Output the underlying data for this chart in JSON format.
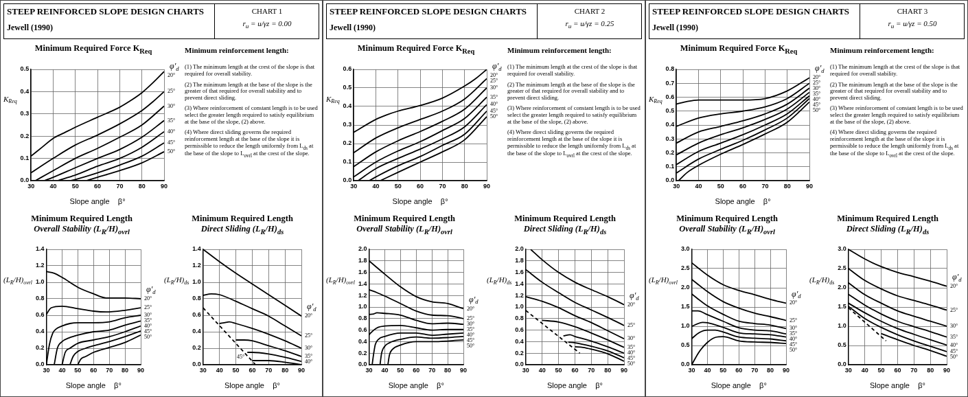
{
  "chart_data": [
    {
      "type": "other",
      "title": "STEEP REINFORCED SLOPE DESIGN CHARTS",
      "annotations": [
        "Jewell (1990)",
        "CHART 1",
        "r$_{u}$ = u/γz = 0.00",
        "Minimum reinforcement length:",
        "(1) The minimum length at the crest of the slope is that required for overall stability.",
        "(2) The minimum length at the base of the slope is the greater of that required for overall stability and to prevent direct sliding.",
        "(3) Where reinforcement of constant length is to be used select the greater length required to satisfy equilibrium at the base of the slope, (2) above.",
        "(4) Where direct sliding governs the required reinforcement length at the base of the slope it is permissible to reduce the length uniformly from L$_{ds}$ at the base of the slope to L$_{ovrl}$ at the crest of the slope."
      ]
    },
    {
      "type": "line",
      "title": "Minimum Required Force  K$_{Req}$",
      "xlabel": "Slope angle    β°",
      "ylabel": "K$_{Req}$",
      "legend_title": "φ′$_{d}$",
      "xlim": [
        30,
        90
      ],
      "ylim": [
        0,
        0.5
      ],
      "xticks": [
        30,
        40,
        50,
        60,
        70,
        80,
        90
      ],
      "yticks": [
        {
          "value": 0,
          "label": "0.0"
        },
        0.1,
        0.2,
        0.3,
        0.4,
        0.5
      ],
      "grid": true,
      "marker": "none",
      "series": [
        {
          "name": "20°",
          "color": "#000000",
          "x": [
            30,
            35,
            40,
            45,
            50,
            60,
            70,
            75,
            80,
            85,
            90
          ],
          "values": [
            0.11,
            0.15,
            0.19,
            0.215,
            0.24,
            0.285,
            0.33,
            0.36,
            0.395,
            0.44,
            0.49
          ]
        },
        {
          "name": "25°",
          "color": "#000000",
          "x": [
            30,
            40,
            50,
            60,
            70,
            80,
            85,
            90
          ],
          "values": [
            0.035,
            0.1,
            0.16,
            0.205,
            0.255,
            0.315,
            0.355,
            0.4
          ]
        },
        {
          "name": "30°",
          "color": "#000000",
          "x": [
            32,
            40,
            50,
            60,
            70,
            80,
            90
          ],
          "values": [
            0,
            0.045,
            0.1,
            0.145,
            0.195,
            0.25,
            0.335
          ]
        },
        {
          "name": "35°",
          "color": "#000000",
          "x": [
            36,
            40,
            50,
            60,
            70,
            80,
            90
          ],
          "values": [
            0,
            0.015,
            0.058,
            0.1,
            0.14,
            0.195,
            0.27
          ]
        },
        {
          "name": "40°",
          "color": "#000000",
          "x": [
            42,
            50,
            60,
            70,
            80,
            90
          ],
          "values": [
            0,
            0.025,
            0.065,
            0.1,
            0.15,
            0.22
          ]
        },
        {
          "name": "45°",
          "color": "#000000",
          "x": [
            48,
            50,
            60,
            70,
            80,
            90
          ],
          "values": [
            0,
            0.005,
            0.035,
            0.07,
            0.11,
            0.17
          ]
        },
        {
          "name": "50°",
          "color": "#000000",
          "x": [
            55,
            60,
            70,
            80,
            90
          ],
          "values": [
            0,
            0.015,
            0.045,
            0.08,
            0.13
          ]
        }
      ]
    },
    {
      "type": "line",
      "title": "Minimum Required Length",
      "subtitle": "Overall Stability   (L$_{R}$/H)$_{ovrl}$",
      "xlabel": "Slope angle    β°",
      "ylabel": "(L$_{R}$/H)$_{ovrl}$",
      "legend_title": "φ′$_{d}$",
      "xlim": [
        30,
        90
      ],
      "ylim": [
        0,
        1.4
      ],
      "xticks": [
        30,
        40,
        50,
        60,
        70,
        80,
        90
      ],
      "yticks": [
        {
          "value": 0,
          "label": "0.0"
        },
        0.2,
        0.4,
        0.6,
        0.8,
        {
          "value": 1,
          "label": "1.0"
        },
        1.2,
        1.4
      ],
      "grid": true,
      "marker": "none",
      "series": [
        {
          "name": "20°",
          "color": "#000000",
          "x": [
            30,
            35,
            40,
            50,
            60,
            68,
            80,
            90
          ],
          "values": [
            1.13,
            1.11,
            1.06,
            0.94,
            0.86,
            0.81,
            0.81,
            0.8
          ]
        },
        {
          "name": "25°",
          "color": "#000000",
          "x": [
            30,
            33,
            40,
            50,
            60,
            68,
            80,
            90
          ],
          "values": [
            0.61,
            0.69,
            0.71,
            0.68,
            0.65,
            0.64,
            0.66,
            0.69
          ]
        },
        {
          "name": "30°",
          "color": "#000000",
          "x": [
            30,
            32,
            34,
            36,
            40,
            45,
            50,
            60,
            70,
            80,
            90
          ],
          "values": [
            0,
            0.25,
            0.38,
            0.43,
            0.47,
            0.5,
            0.51,
            0.51,
            0.52,
            0.57,
            0.6
          ]
        },
        {
          "name": "35°",
          "color": "#000000",
          "x": [
            35,
            37,
            40,
            45,
            50,
            60,
            70,
            80,
            90
          ],
          "values": [
            0,
            0.2,
            0.28,
            0.33,
            0.36,
            0.4,
            0.42,
            0.48,
            0.53
          ]
        },
        {
          "name": "40°",
          "color": "#000000",
          "x": [
            40,
            42,
            45,
            50,
            60,
            70,
            80,
            90
          ],
          "values": [
            0,
            0.15,
            0.2,
            0.26,
            0.3,
            0.34,
            0.4,
            0.47
          ]
        },
        {
          "name": "45°",
          "color": "#000000",
          "x": [
            45,
            47,
            50,
            55,
            60,
            70,
            80,
            90
          ],
          "values": [
            0,
            0.1,
            0.16,
            0.2,
            0.23,
            0.28,
            0.34,
            0.41
          ]
        },
        {
          "name": "50°",
          "color": "#000000",
          "x": [
            50,
            52,
            55,
            60,
            70,
            80,
            90
          ],
          "values": [
            0,
            0.07,
            0.1,
            0.15,
            0.21,
            0.27,
            0.36
          ]
        }
      ]
    },
    {
      "type": "line",
      "title": "Minimum Required Length",
      "subtitle": "Direct Sliding   (L$_{R}$/H)$_{ds}$",
      "xlabel": "Slope angle    β°",
      "ylabel": "(L$_{R}$/H)$_{ds}$",
      "legend_title": "φ′$_{d}$",
      "xlim": [
        30,
        90
      ],
      "ylim": [
        0,
        1.4
      ],
      "xticks": [
        30,
        40,
        50,
        60,
        70,
        80,
        90
      ],
      "yticks": [
        {
          "value": 0,
          "label": "0.0"
        },
        0.2,
        0.4,
        0.6,
        0.8,
        {
          "value": 1,
          "label": "1.0"
        },
        1.2,
        1.4
      ],
      "grid": true,
      "marker": "none",
      "annotations": [
        {
          "text": "45°",
          "x": 57,
          "y": 0.05
        }
      ],
      "series": [
        {
          "name": "20°",
          "color": "#000000",
          "x": [
            30,
            40,
            50,
            60,
            70,
            80,
            90
          ],
          "values": [
            1.4,
            1.25,
            1.11,
            0.98,
            0.85,
            0.72,
            0.59
          ]
        },
        {
          "name": "25°",
          "color": "#000000",
          "x": [
            30,
            35,
            40,
            50,
            60,
            70,
            80,
            90
          ],
          "values": [
            0.84,
            0.86,
            0.85,
            0.77,
            0.68,
            0.59,
            0.47,
            0.35
          ]
        },
        {
          "name": "30°",
          "color": "#000000",
          "x": [
            40,
            43,
            46,
            50,
            60,
            70,
            80,
            90
          ],
          "values": [
            0.5,
            0.51,
            0.52,
            0.5,
            0.44,
            0.37,
            0.29,
            0.2
          ]
        },
        {
          "name": "35°",
          "color": "#000000",
          "x": [
            50,
            55,
            60,
            70,
            80,
            90
          ],
          "values": [
            0.3,
            0.3,
            0.29,
            0.23,
            0.17,
            0.1
          ]
        },
        {
          "name": "40°",
          "color": "#000000",
          "x": [
            57,
            60,
            70,
            80,
            90
          ],
          "values": [
            0.15,
            0.15,
            0.13,
            0.09,
            0.04
          ]
        },
        {
          "color": "#000000",
          "x": [
            60,
            70,
            80,
            90
          ],
          "values": [
            0.05,
            0.05,
            0.03,
            0
          ]
        },
        {
          "color": "#000000",
          "line_style": "dashed",
          "x": [
            30,
            62
          ],
          "values": [
            0.69,
            0
          ]
        }
      ]
    },
    {
      "type": "other",
      "title": "STEEP REINFORCED SLOPE DESIGN CHARTS",
      "annotations": [
        "Jewell (1990)",
        "CHART 2",
        "r$_{u}$ = u/γz = 0.25",
        "Minimum reinforcement length:",
        "(1) The minimum length at the crest of the slope is that required for overall stability.",
        "(2) The minimum length at the base of the slope is the greater of that required for overall stability and to prevent direct sliding.",
        "(3) Where reinforcement of constant length is to be used select the greater length required to satisfy equilibrium at the base of the slope, (2) above.",
        "(4) Where direct sliding governs the required reinforcement length at the base of the slope it is permissible to reduce the length uniformly from L$_{ds}$ at the base of the slope to L$_{ovrl}$ at the crest of the slope."
      ]
    },
    {
      "type": "line",
      "title": "Minimum Required Force  K$_{Req}$",
      "xlabel": "Slope angle    β°",
      "ylabel": "K$_{Req}$",
      "legend_title": "φ′$_{d}$",
      "xlim": [
        30,
        90
      ],
      "ylim": [
        0,
        0.6
      ],
      "xticks": [
        30,
        40,
        50,
        60,
        70,
        80,
        90
      ],
      "yticks": [
        {
          "value": 0,
          "label": "0.0"
        },
        0.1,
        0.2,
        0.3,
        0.4,
        0.5,
        0.6
      ],
      "grid": true,
      "marker": "none",
      "series": [
        {
          "name": "20°",
          "color": "#000000",
          "x": [
            30,
            40,
            45,
            50,
            60,
            70,
            80,
            85,
            90
          ],
          "values": [
            0.26,
            0.33,
            0.355,
            0.375,
            0.405,
            0.445,
            0.51,
            0.55,
            0.6
          ]
        },
        {
          "name": "25°",
          "color": "#000000",
          "x": [
            30,
            40,
            50,
            60,
            70,
            80,
            90
          ],
          "values": [
            0.15,
            0.23,
            0.285,
            0.33,
            0.375,
            0.44,
            0.55
          ]
        },
        {
          "name": "30°",
          "color": "#000000",
          "x": [
            30,
            40,
            50,
            60,
            70,
            80,
            90
          ],
          "values": [
            0.075,
            0.155,
            0.215,
            0.265,
            0.32,
            0.385,
            0.5
          ]
        },
        {
          "name": "35°",
          "color": "#000000",
          "x": [
            30,
            40,
            50,
            60,
            70,
            80,
            90
          ],
          "values": [
            0.02,
            0.1,
            0.16,
            0.21,
            0.27,
            0.335,
            0.45
          ]
        },
        {
          "name": "40°",
          "color": "#000000",
          "x": [
            32,
            40,
            50,
            60,
            70,
            80,
            90
          ],
          "values": [
            0,
            0.065,
            0.12,
            0.17,
            0.225,
            0.29,
            0.41
          ]
        },
        {
          "name": "45°",
          "color": "#000000",
          "x": [
            37,
            40,
            50,
            60,
            70,
            80,
            90
          ],
          "values": [
            0,
            0.02,
            0.08,
            0.13,
            0.19,
            0.25,
            0.375
          ]
        },
        {
          "name": "50°",
          "color": "#000000",
          "x": [
            42,
            50,
            60,
            70,
            80,
            90
          ],
          "values": [
            0,
            0.045,
            0.1,
            0.155,
            0.22,
            0.345
          ]
        }
      ]
    },
    {
      "type": "line",
      "title": "Minimum Required Length",
      "subtitle": "Overall Stability   (L$_{R}$/H)$_{ovrl}$",
      "xlabel": "Slope angle    β°",
      "ylabel": "(L$_{R}$/H)$_{ovrl}$",
      "legend_title": "φ′$_{d}$",
      "xlim": [
        30,
        90
      ],
      "ylim": [
        0,
        2
      ],
      "xticks": [
        30,
        40,
        50,
        60,
        70,
        80,
        90
      ],
      "yticks": [
        {
          "value": 0,
          "label": "0.0"
        },
        0.2,
        0.4,
        0.6,
        0.8,
        {
          "value": 1,
          "label": "1.0"
        },
        1.2,
        1.4,
        1.6,
        1.8,
        {
          "value": 2,
          "label": "2.0"
        }
      ],
      "grid": true,
      "marker": "none",
      "series": [
        {
          "name": "20°",
          "color": "#000000",
          "x": [
            30,
            40,
            50,
            60,
            70,
            80,
            90
          ],
          "values": [
            1.8,
            1.57,
            1.35,
            1.18,
            1.09,
            1.06,
            0.97
          ]
        },
        {
          "name": "25°",
          "color": "#000000",
          "x": [
            30,
            35,
            40,
            50,
            60,
            70,
            80,
            90
          ],
          "values": [
            1.3,
            1.25,
            1.19,
            1.06,
            0.93,
            0.86,
            0.85,
            0.8
          ]
        },
        {
          "name": "30°",
          "color": "#000000",
          "x": [
            30,
            33,
            35,
            40,
            50,
            60,
            70,
            80,
            90
          ],
          "values": [
            0.87,
            0.88,
            0.9,
            0.89,
            0.86,
            0.77,
            0.71,
            0.72,
            0.7
          ]
        },
        {
          "name": "35°",
          "color": "#000000",
          "x": [
            30,
            33,
            36,
            40,
            50,
            60,
            70,
            80,
            90
          ],
          "values": [
            0.52,
            0.6,
            0.65,
            0.67,
            0.68,
            0.64,
            0.6,
            0.61,
            0.61
          ]
        },
        {
          "name": "40°",
          "color": "#000000",
          "x": [
            32,
            33,
            34,
            36,
            40,
            50,
            60,
            70,
            80,
            90
          ],
          "values": [
            0,
            0.2,
            0.35,
            0.44,
            0.49,
            0.55,
            0.55,
            0.51,
            0.53,
            0.55
          ]
        },
        {
          "name": "45°",
          "color": "#000000",
          "x": [
            37,
            38,
            40,
            43,
            50,
            60,
            70,
            80,
            90
          ],
          "values": [
            0,
            0.2,
            0.32,
            0.38,
            0.44,
            0.48,
            0.46,
            0.47,
            0.49
          ]
        },
        {
          "name": "50°",
          "color": "#000000",
          "x": [
            42,
            43,
            45,
            50,
            60,
            70,
            80,
            90
          ],
          "values": [
            0,
            0.17,
            0.27,
            0.34,
            0.4,
            0.4,
            0.41,
            0.43
          ]
        }
      ]
    },
    {
      "type": "line",
      "title": "Minimum Required Length",
      "subtitle": "Direct Sliding   (L$_{R}$/H)$_{ds}$",
      "xlabel": "Slope angle    β°",
      "ylabel": "(L$_{R}$/H)$_{ds}$",
      "legend_title": "φ′$_{d}$",
      "xlim": [
        30,
        90
      ],
      "ylim": [
        0,
        2
      ],
      "xticks": [
        30,
        40,
        50,
        60,
        70,
        80,
        90
      ],
      "yticks": [
        {
          "value": 0,
          "label": "0.0"
        },
        0.2,
        0.4,
        0.6,
        0.8,
        {
          "value": 1,
          "label": "1.0"
        },
        1.2,
        1.4,
        1.6,
        1.8,
        {
          "value": 2,
          "label": "2.0"
        }
      ],
      "grid": true,
      "marker": "none",
      "series": [
        {
          "name": "20°",
          "color": "#000000",
          "x": [
            33,
            40,
            50,
            60,
            70,
            80,
            90
          ],
          "values": [
            2,
            1.82,
            1.6,
            1.43,
            1.3,
            1.18,
            1.04
          ]
        },
        {
          "name": "25°",
          "color": "#000000",
          "x": [
            30,
            40,
            50,
            60,
            70,
            80,
            90
          ],
          "values": [
            1.65,
            1.43,
            1.25,
            1.08,
            0.95,
            0.82,
            0.68
          ]
        },
        {
          "name": "30°",
          "color": "#000000",
          "x": [
            30,
            40,
            50,
            60,
            70,
            80,
            90
          ],
          "values": [
            1.18,
            1.1,
            0.99,
            0.85,
            0.73,
            0.59,
            0.45
          ]
        },
        {
          "name": "35°",
          "color": "#000000",
          "x": [
            40,
            50,
            60,
            70,
            80,
            90
          ],
          "values": [
            0.77,
            0.74,
            0.66,
            0.55,
            0.43,
            0.3
          ]
        },
        {
          "name": "40°",
          "color": "#000000",
          "x": [
            53,
            57,
            60,
            70,
            80,
            90
          ],
          "values": [
            0.5,
            0.52,
            0.49,
            0.41,
            0.31,
            0.2
          ]
        },
        {
          "name": "45°",
          "color": "#000000",
          "x": [
            56,
            60,
            70,
            80,
            90
          ],
          "values": [
            0.39,
            0.38,
            0.32,
            0.24,
            0.12
          ]
        },
        {
          "name": "50°",
          "color": "#000000",
          "x": [
            60,
            65,
            70,
            80,
            90
          ],
          "values": [
            0.31,
            0.3,
            0.27,
            0.19,
            0.06
          ]
        },
        {
          "color": "#000000",
          "line_style": "dashed",
          "x": [
            30,
            63
          ],
          "values": [
            0.94,
            0.2
          ]
        }
      ]
    },
    {
      "type": "other",
      "title": "STEEP REINFORCED SLOPE DESIGN CHARTS",
      "annotations": [
        "Jewell (1990)",
        "CHART 3",
        "r$_{u}$ = u/γz = 0.50",
        "Minimum reinforcement length:",
        "(1) The minimum length at the crest of the slope is that required for overall stability.",
        "(2) The minimum length at the base of the slope is the greater of that required for overall stability and to prevent direct sliding.",
        "(3) Where reinforcement of constant length is to be used select the greater length required to satisfy equilibrium at the base of the slope, (2) above.",
        "(4) Where direct sliding governs the required reinforcement length at the base of the slope it is permissible to reduce the length uniformly from L$_{ds}$ at the base of the slope to L$_{ovrl}$ at the crest of the slope."
      ]
    },
    {
      "type": "line",
      "title": "Minimum Required Force  K$_{Req}$",
      "xlabel": "Slope angle    β°",
      "ylabel": "K$_{Req}$",
      "legend_title": "φ′$_{d}$",
      "xlim": [
        30,
        90
      ],
      "ylim": [
        0,
        0.8
      ],
      "xticks": [
        30,
        40,
        50,
        60,
        70,
        80,
        90
      ],
      "yticks": [
        {
          "value": 0,
          "label": "0.0"
        },
        0.1,
        0.2,
        0.3,
        0.4,
        0.5,
        0.6,
        0.7,
        0.8
      ],
      "grid": true,
      "marker": "none",
      "series": [
        {
          "name": "20°",
          "color": "#000000",
          "x": [
            30,
            35,
            40,
            50,
            60,
            70,
            80,
            90
          ],
          "values": [
            0.55,
            0.57,
            0.58,
            0.58,
            0.58,
            0.59,
            0.645,
            0.74
          ]
        },
        {
          "name": "25°",
          "color": "#000000",
          "x": [
            30,
            40,
            50,
            60,
            70,
            80,
            90
          ],
          "values": [
            0.39,
            0.45,
            0.48,
            0.5,
            0.53,
            0.59,
            0.7
          ]
        },
        {
          "name": "30°",
          "color": "#000000",
          "x": [
            30,
            40,
            50,
            60,
            70,
            80,
            90
          ],
          "values": [
            0.27,
            0.35,
            0.39,
            0.43,
            0.48,
            0.55,
            0.665
          ]
        },
        {
          "name": "35°",
          "color": "#000000",
          "x": [
            30,
            40,
            50,
            60,
            70,
            80,
            90
          ],
          "values": [
            0.185,
            0.27,
            0.33,
            0.38,
            0.44,
            0.515,
            0.635
          ]
        },
        {
          "name": "40°",
          "color": "#000000",
          "x": [
            30,
            40,
            50,
            60,
            70,
            80,
            90
          ],
          "values": [
            0.115,
            0.21,
            0.27,
            0.33,
            0.4,
            0.48,
            0.61
          ]
        },
        {
          "name": "45°",
          "color": "#000000",
          "x": [
            30,
            40,
            50,
            60,
            70,
            80,
            90
          ],
          "values": [
            0.055,
            0.155,
            0.225,
            0.29,
            0.365,
            0.45,
            0.59
          ]
        },
        {
          "name": "50°",
          "color": "#000000",
          "x": [
            31,
            35,
            40,
            50,
            60,
            70,
            80,
            90
          ],
          "values": [
            0,
            0.06,
            0.11,
            0.19,
            0.26,
            0.335,
            0.42,
            0.565
          ]
        }
      ]
    },
    {
      "type": "line",
      "title": "Minimum Required Length",
      "subtitle": "Overall Stability   (L$_{R}$/H)$_{ovrl}$",
      "xlabel": "Slope angle    β°",
      "ylabel": "(L$_{R}$/H)$_{ovrl}$",
      "legend_title": "φ′$_{d}$",
      "xlim": [
        30,
        90
      ],
      "ylim": [
        0,
        3
      ],
      "xticks": [
        30,
        40,
        50,
        60,
        70,
        80,
        90
      ],
      "yticks": [
        {
          "value": 0,
          "label": "0.0"
        },
        0.5,
        {
          "value": 1,
          "label": "1.0"
        },
        1.5,
        {
          "value": 2,
          "label": "2.0"
        },
        2.5,
        {
          "value": 3,
          "label": "3.0"
        }
      ],
      "grid": true,
      "marker": "none",
      "series": [
        {
          "name": "20°",
          "color": "#000000",
          "x": [
            30,
            40,
            50,
            60,
            70,
            80,
            90
          ],
          "values": [
            2.65,
            2.33,
            2.08,
            1.93,
            1.82,
            1.7,
            1.6
          ]
        },
        {
          "name": "25°",
          "color": "#000000",
          "x": [
            30,
            40,
            50,
            60,
            70,
            80,
            90
          ],
          "values": [
            2.22,
            1.9,
            1.64,
            1.47,
            1.34,
            1.25,
            1.15
          ]
        },
        {
          "name": "30°",
          "color": "#000000",
          "x": [
            30,
            40,
            50,
            60,
            70,
            80,
            90
          ],
          "values": [
            1.84,
            1.53,
            1.31,
            1.13,
            1.07,
            1.03,
            0.94
          ]
        },
        {
          "name": "35°",
          "color": "#000000",
          "x": [
            30,
            34,
            40,
            50,
            60,
            70,
            80,
            90
          ],
          "values": [
            1.4,
            1.4,
            1.3,
            1.13,
            0.96,
            0.9,
            0.88,
            0.8
          ]
        },
        {
          "name": "40°",
          "color": "#000000",
          "x": [
            30,
            37,
            40,
            50,
            60,
            70,
            80,
            90
          ],
          "values": [
            1,
            1.1,
            1.09,
            0.97,
            0.83,
            0.8,
            0.78,
            0.72
          ]
        },
        {
          "name": "45°",
          "color": "#000000",
          "x": [
            30,
            35,
            40,
            45,
            50,
            60,
            70,
            80,
            90
          ],
          "values": [
            0.68,
            0.84,
            0.9,
            0.9,
            0.85,
            0.72,
            0.69,
            0.67,
            0.62
          ]
        },
        {
          "name": "50°",
          "color": "#000000",
          "x": [
            30,
            35,
            40,
            45,
            50,
            60,
            70,
            80,
            90
          ],
          "values": [
            0,
            0.35,
            0.58,
            0.71,
            0.73,
            0.62,
            0.59,
            0.58,
            0.55
          ]
        }
      ]
    },
    {
      "type": "line",
      "title": "Minimum Required Length",
      "subtitle": "Direct Sliding   (L$_{R}$/H)$_{ds}$",
      "xlabel": "Slope angle    β°",
      "ylabel": "(L$_{R}$/H)$_{ds}$",
      "legend_title": "φ′$_{d}$",
      "xlim": [
        30,
        90
      ],
      "ylim": [
        0,
        3
      ],
      "xticks": [
        30,
        40,
        50,
        60,
        70,
        80,
        90
      ],
      "yticks": [
        {
          "value": 0,
          "label": "0.0"
        },
        0.5,
        {
          "value": 1,
          "label": "1.0"
        },
        1.5,
        {
          "value": 2,
          "label": "2.0"
        },
        2.5,
        {
          "value": 3,
          "label": "3.0"
        }
      ],
      "grid": true,
      "marker": "none",
      "series": [
        {
          "name": "20°",
          "color": "#000000",
          "x": [
            30,
            40,
            50,
            60,
            70,
            80,
            90
          ],
          "values": [
            3,
            2.75,
            2.55,
            2.4,
            2.29,
            2.17,
            2.04
          ]
        },
        {
          "name": "25°",
          "color": "#000000",
          "x": [
            30,
            40,
            50,
            60,
            70,
            80,
            90
          ],
          "values": [
            2.5,
            2.19,
            1.97,
            1.79,
            1.67,
            1.55,
            1.42
          ]
        },
        {
          "name": "30°",
          "color": "#000000",
          "x": [
            30,
            40,
            50,
            60,
            70,
            80,
            90
          ],
          "values": [
            2.13,
            1.82,
            1.6,
            1.4,
            1.26,
            1.13,
            1
          ]
        },
        {
          "name": "35°",
          "color": "#000000",
          "x": [
            30,
            40,
            50,
            60,
            70,
            80,
            90
          ],
          "values": [
            1.83,
            1.55,
            1.32,
            1.13,
            0.99,
            0.86,
            0.72
          ]
        },
        {
          "name": "40°",
          "color": "#000000",
          "x": [
            30,
            40,
            50,
            60,
            70,
            80,
            90
          ],
          "values": [
            1.6,
            1.35,
            1.13,
            0.94,
            0.79,
            0.65,
            0.51
          ]
        },
        {
          "name": "45°",
          "color": "#000000",
          "x": [
            30,
            40,
            50,
            60,
            70,
            80,
            90
          ],
          "values": [
            1.52,
            1.2,
            0.97,
            0.78,
            0.62,
            0.48,
            0.34
          ]
        },
        {
          "name": "50°",
          "color": "#000000",
          "x": [
            50,
            60,
            70,
            80,
            90
          ],
          "values": [
            0.81,
            0.65,
            0.5,
            0.37,
            0.22
          ]
        },
        {
          "color": "#000000",
          "line_style": "dashed",
          "x": [
            30,
            53
          ],
          "values": [
            1.48,
            0.62
          ]
        }
      ]
    }
  ]
}
